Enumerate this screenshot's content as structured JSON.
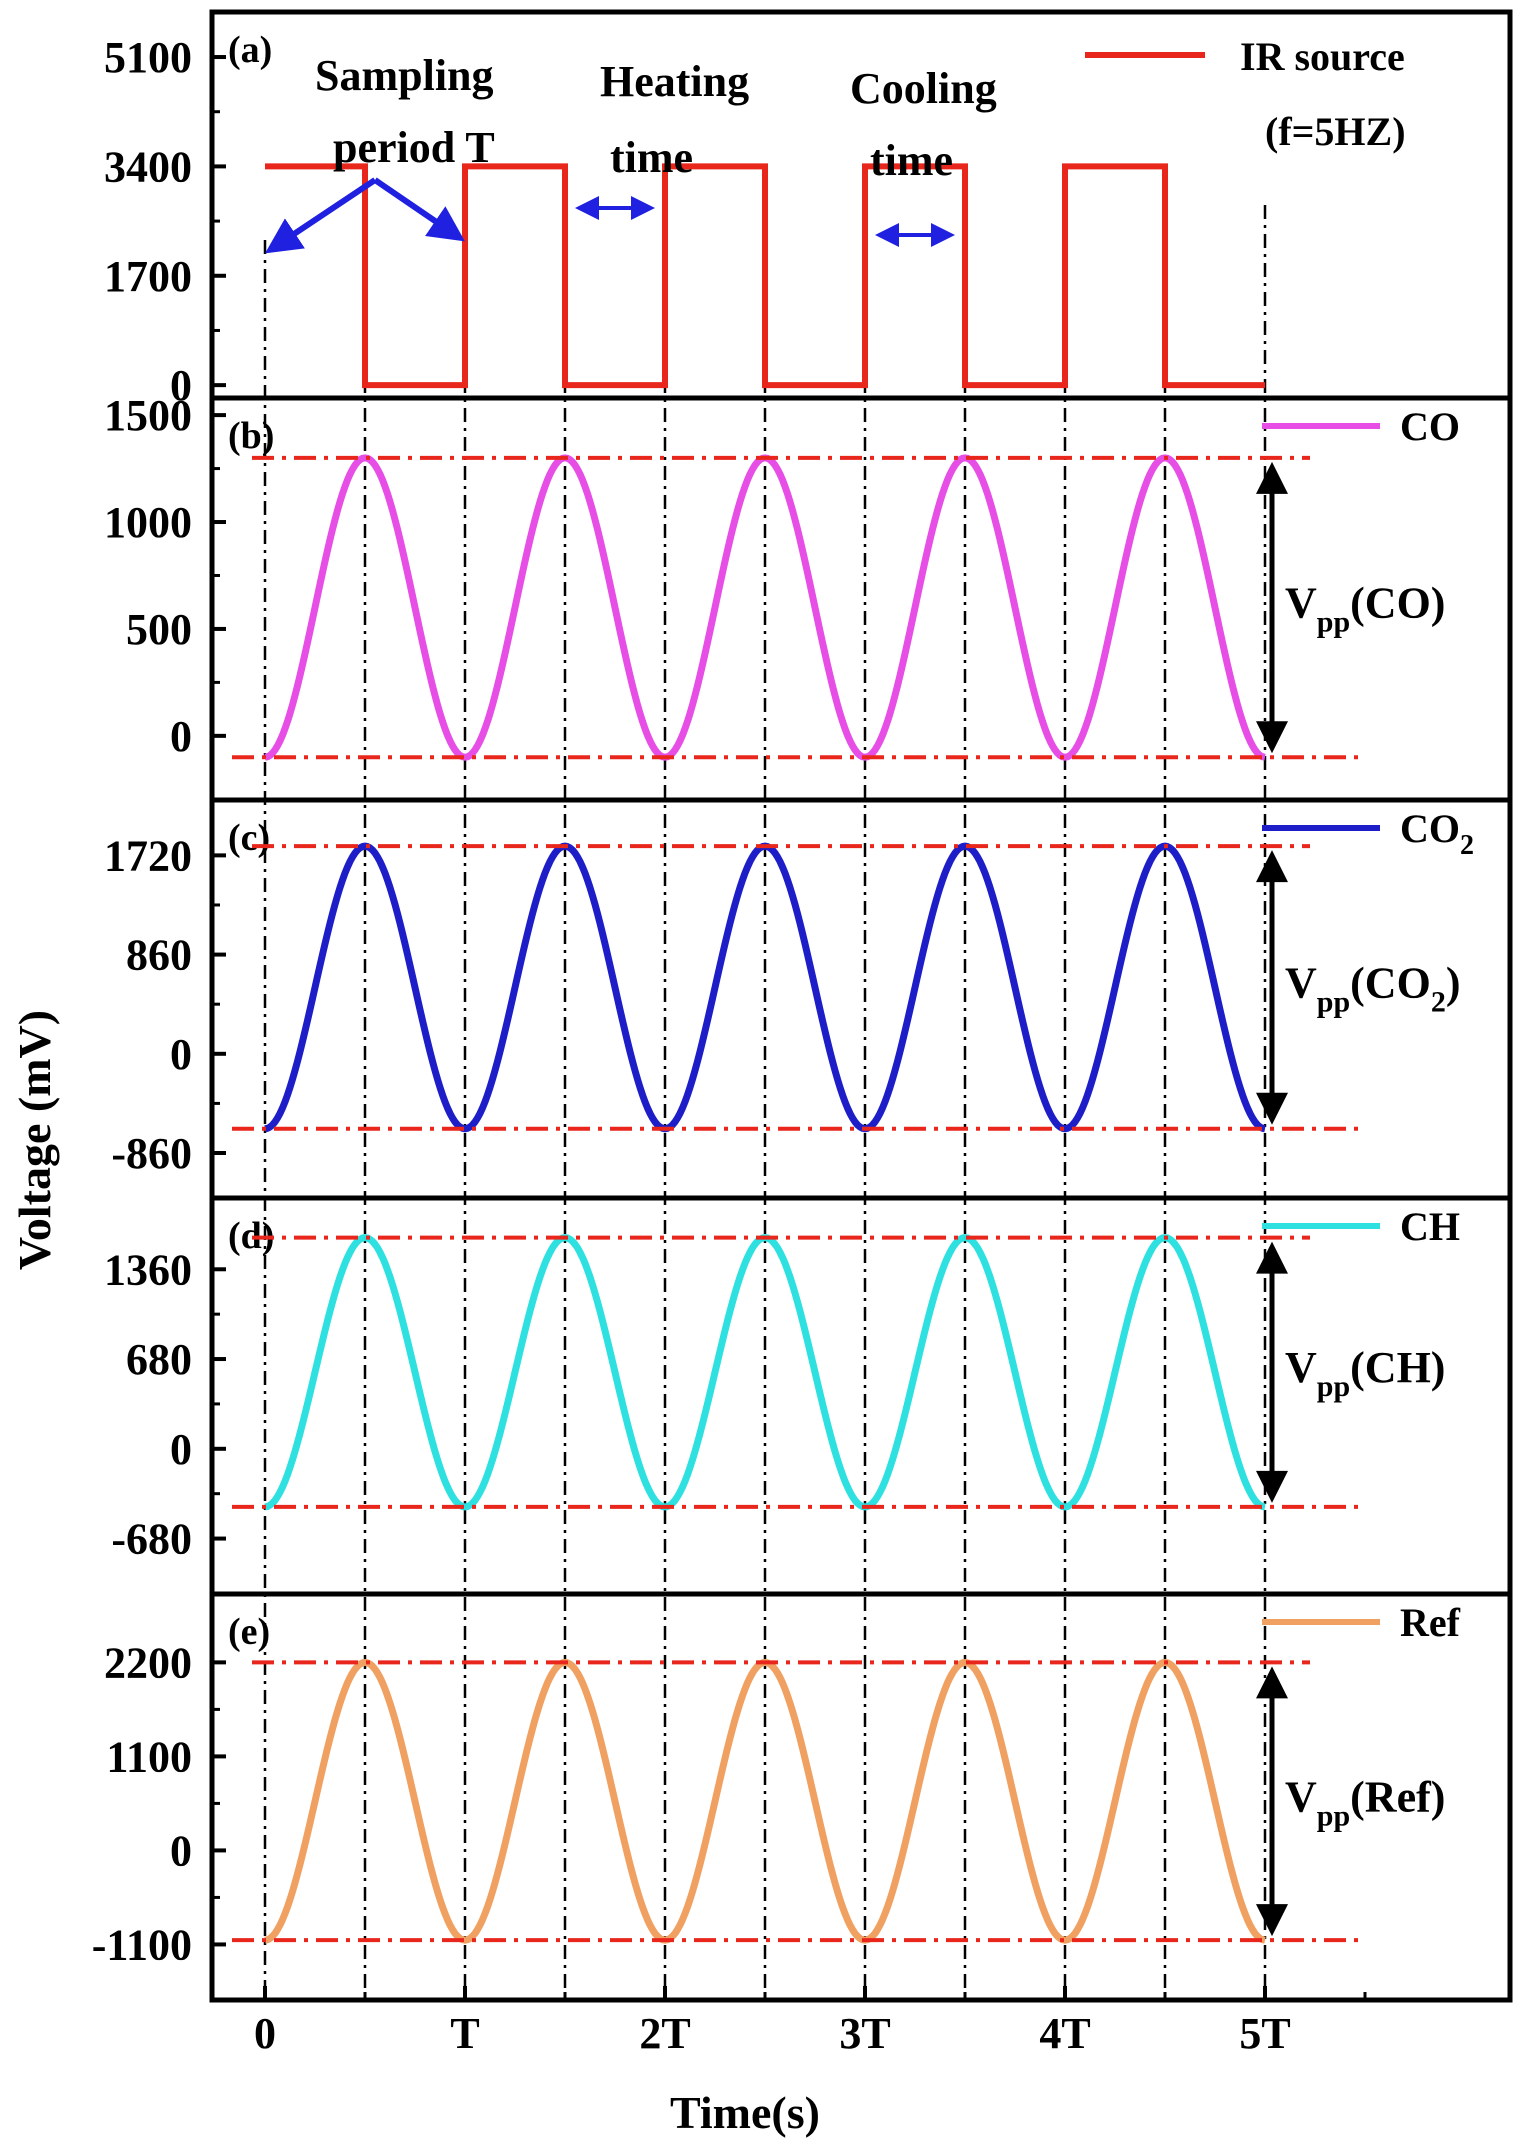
{
  "axes": {
    "ylabel": "Voltage (mV)",
    "xlabel": "Time(s)",
    "xticks": [
      "0",
      "T",
      "2T",
      "3T",
      "4T",
      "5T"
    ]
  },
  "annotations": {
    "sampling": "Sampling",
    "period_t": "period T",
    "heating": "Heating",
    "heating_time": "time",
    "cooling": "Cooling",
    "cooling_time": "time"
  },
  "colors": {
    "ir": "#e8261c",
    "co": "#e64ee6",
    "co2": "#1e1ec8",
    "ch": "#2ee0e0",
    "ref": "#f0a060",
    "arrow": "#2020e0",
    "refline": "#e8261c"
  },
  "chart_data": [
    {
      "type": "line",
      "panel": "(a)",
      "legend": "IR source",
      "legend_sub": "(f=5HZ)",
      "series_shape": "square wave",
      "yticks": [
        "0",
        "1700",
        "3400",
        "5100"
      ],
      "ylim": [
        -200,
        5800
      ],
      "x": [
        0,
        0.5,
        0.5,
        1.0,
        1.0,
        1.5,
        1.5,
        2.0,
        2.0,
        2.5,
        2.5,
        3.0,
        3.0,
        3.5,
        3.5,
        4.0,
        4.0,
        4.5,
        4.5,
        5.0
      ],
      "y": [
        3400,
        3400,
        0,
        0,
        3400,
        3400,
        0,
        0,
        3400,
        3400,
        0,
        0,
        3400,
        3400,
        0,
        0,
        3400,
        3400,
        0,
        0
      ]
    },
    {
      "type": "line",
      "panel": "(b)",
      "legend": "CO",
      "vpp_label": "V",
      "vpp_sub": "pp",
      "vpp_suffix": "(CO)",
      "yticks": [
        "0",
        "500",
        "1000",
        "1500"
      ],
      "ylim": [
        -300,
        1580
      ],
      "max": 1300,
      "min": -100,
      "period_T": 1,
      "cycles": 5
    },
    {
      "type": "line",
      "panel": "(c)",
      "legend": "CO",
      "legend_sub": "2",
      "vpp_label": "V",
      "vpp_sub": "pp",
      "vpp_suffix": "(CO",
      "vpp_suffix_sub": "2",
      "vpp_close": ")",
      "yticks": [
        "-860",
        "0",
        "860",
        "1720"
      ],
      "ylim": [
        -1250,
        2200
      ],
      "max": 1800,
      "min": -650,
      "period_T": 1,
      "cycles": 5
    },
    {
      "type": "line",
      "panel": "(d)",
      "legend": "CH",
      "vpp_label": "V",
      "vpp_sub": "pp",
      "vpp_suffix": "(CH)",
      "yticks": [
        "-680",
        "0",
        "680",
        "1360"
      ],
      "ylim": [
        -1100,
        1900
      ],
      "max": 1600,
      "min": -440,
      "period_T": 1,
      "cycles": 5
    },
    {
      "type": "line",
      "panel": "(e)",
      "legend": "Ref",
      "vpp_label": "V",
      "vpp_sub": "pp",
      "vpp_suffix": "(Ref)",
      "yticks": [
        "-1100",
        "0",
        "1100",
        "2200"
      ],
      "ylim": [
        -1750,
        3000
      ],
      "max": 2200,
      "min": -1050,
      "period_T": 1,
      "cycles": 5
    }
  ]
}
